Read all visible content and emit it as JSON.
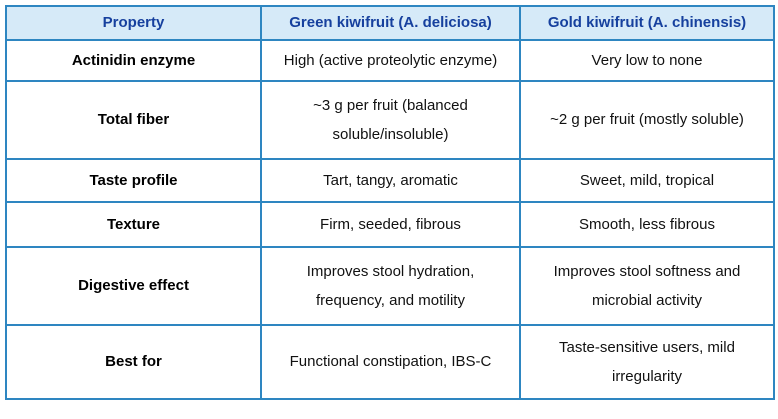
{
  "table": {
    "headers": [
      "Property",
      "Green kiwifruit (A. deliciosa)",
      "Gold kiwifruit (A. chinensis)"
    ],
    "rows": [
      {
        "property": "Actinidin enzyme",
        "green": "High (active proteolytic enzyme)",
        "gold": "Very low to none"
      },
      {
        "property": "Total fiber",
        "green": "~3 g per fruit (balanced soluble/insoluble)",
        "gold": "~2 g per fruit (mostly soluble)"
      },
      {
        "property": "Taste profile",
        "green": "Tart, tangy, aromatic",
        "gold": "Sweet, mild, tropical"
      },
      {
        "property": "Texture",
        "green": "Firm, seeded, fibrous",
        "gold": "Smooth, less fibrous"
      },
      {
        "property": "Digestive effect",
        "green": "Improves stool hydration, frequency, and motility",
        "gold": "Improves stool softness and microbial activity"
      },
      {
        "property": "Best for",
        "green": "Functional constipation, IBS-C",
        "gold": "Taste-sensitive users, mild irregularity"
      }
    ]
  },
  "colors": {
    "border": "#2e86c1",
    "header_bg": "#d6eaf8",
    "header_text": "#16409e",
    "body_text": "#111111",
    "property_text": "#000000"
  }
}
